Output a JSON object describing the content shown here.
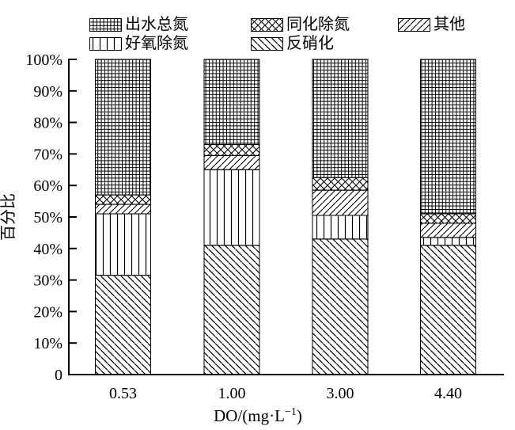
{
  "figure": {
    "background_color": "#ffffff",
    "ink_color": "#000000"
  },
  "legend": {
    "items": [
      {
        "label": "出水总氮",
        "pattern": "grid"
      },
      {
        "label": "同化除氮",
        "pattern": "crosshatch"
      },
      {
        "label": "其他",
        "pattern": "diagonal-up"
      },
      {
        "label": "好氧除氮",
        "pattern": "vertical"
      },
      {
        "label": "反硝化",
        "pattern": "diagonal-down"
      }
    ]
  },
  "axis": {
    "x_title_main": "DO/(mg·L",
    "x_title_sup": "−1",
    "x_title_close": ")"
  },
  "chart_data": {
    "type": "bar",
    "stacked": true,
    "title": "",
    "xlabel": "DO/(mg·L⁻¹)",
    "ylabel": "百分比",
    "categories": [
      "0.53",
      "1.00",
      "3.00",
      "4.40"
    ],
    "series": [
      {
        "name": "反硝化",
        "pattern": "diagonal-down",
        "values": [
          31.5,
          41,
          43,
          41
        ]
      },
      {
        "name": "好氧除氮",
        "pattern": "vertical",
        "values": [
          19.5,
          24,
          7.5,
          2.5
        ]
      },
      {
        "name": "其他",
        "pattern": "diagonal-up",
        "values": [
          3,
          4.5,
          8,
          4.5
        ]
      },
      {
        "name": "同化除氮",
        "pattern": "crosshatch",
        "values": [
          3,
          3.5,
          4,
          3
        ]
      },
      {
        "name": "出水总氮",
        "pattern": "grid",
        "values": [
          43,
          27,
          37.5,
          49
        ]
      }
    ],
    "ylim": [
      0,
      100
    ],
    "ytick_step": 10,
    "ytick_labels": [
      "0",
      "10%",
      "20%",
      "30%",
      "40%",
      "50%",
      "60%",
      "70%",
      "80%",
      "90%",
      "100%"
    ],
    "grid": false,
    "legend_position": "top"
  }
}
